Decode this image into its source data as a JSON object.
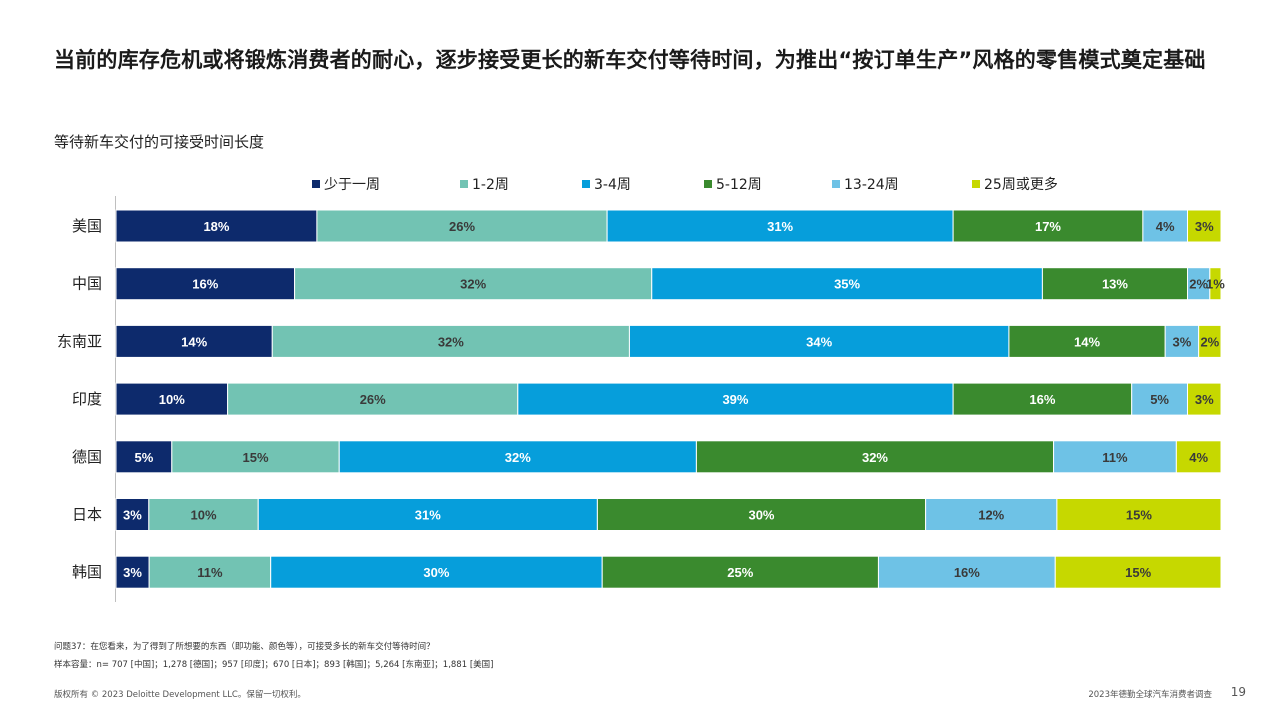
{
  "headline": "当前的库存危机或将锻炼消费者的耐心，逐步接受更长的新车交付等待时间，为推出“按订单生产”风格的零售模式奠定基础",
  "subtitle": "等待新车交付的可接受时间长度",
  "footnotes": {
    "question": "问题37：在您看来，为了得到了所想要的东西（即功能、颜色等），可接受多长的新车交付等待时间？",
    "sample": "样本容量：n= 707 [中国]；1,278 [德国]；957 [印度]；670 [日本]；893 [韩国]；5,264 [东南亚]；1,881 [美国]"
  },
  "footer": {
    "copyright": "版权所有 © 2023 Deloitte Development LLC。保留一切权利。",
    "report_name": "2023年德勤全球汽车消费者调查",
    "page_number": "19"
  },
  "chart_data": {
    "type": "bar",
    "orientation": "horizontal",
    "stacked": true,
    "title": "等待新车交付的可接受时间长度",
    "xlabel": "",
    "ylabel": "",
    "xlim": [
      0,
      100
    ],
    "legend_position": "top",
    "categories": [
      "美国",
      "中国",
      "东南亚",
      "印度",
      "德国",
      "日本",
      "韩国"
    ],
    "series": [
      {
        "name": "少于一周",
        "color": "#0d2a6c",
        "label_color": "#ffffff",
        "values": [
          18,
          16,
          14,
          10,
          5,
          3,
          3
        ]
      },
      {
        "name": "1-2周",
        "color": "#72c3b3",
        "label_color": "#3a3a3a",
        "values": [
          26,
          32,
          32,
          26,
          15,
          10,
          11
        ]
      },
      {
        "name": "3-4周",
        "color": "#069edb",
        "label_color": "#ffffff",
        "values": [
          31,
          35,
          34,
          39,
          32,
          31,
          30
        ]
      },
      {
        "name": "5-12周",
        "color": "#3a8a2e",
        "label_color": "#ffffff",
        "values": [
          17,
          13,
          14,
          16,
          32,
          30,
          25
        ]
      },
      {
        "name": "13-24周",
        "color": "#6ec2e6",
        "label_color": "#3a3a3a",
        "values": [
          4,
          2,
          3,
          5,
          11,
          12,
          16
        ]
      },
      {
        "name": "25周或更多",
        "color": "#c6d800",
        "label_color": "#3a3a3a",
        "values": [
          3,
          1,
          2,
          3,
          4,
          15,
          15
        ]
      }
    ]
  }
}
